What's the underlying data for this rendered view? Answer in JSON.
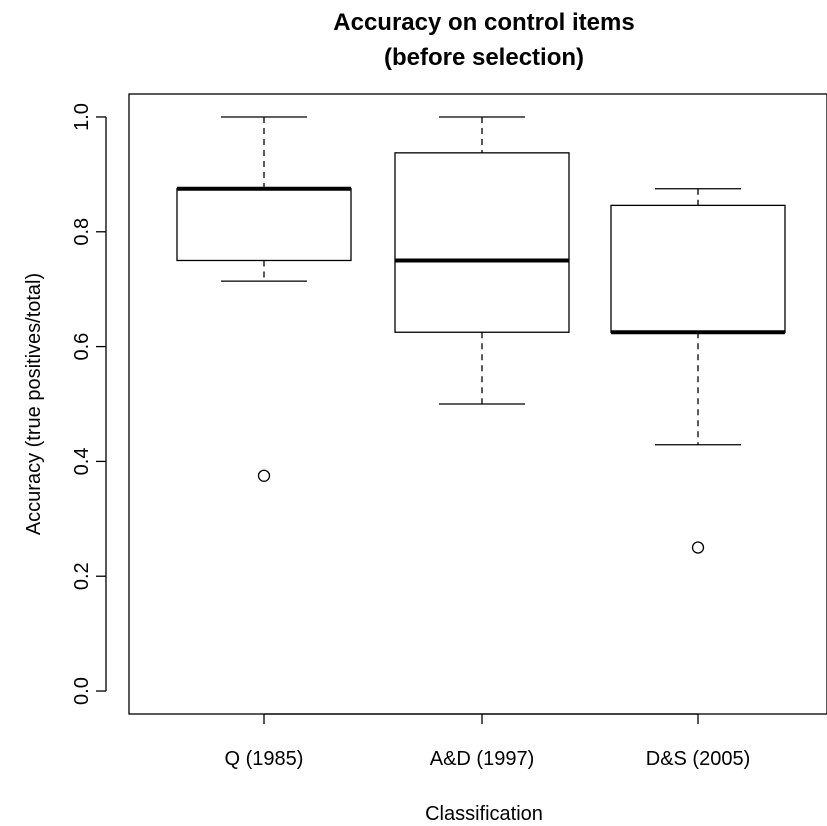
{
  "chart_data": {
    "type": "boxplot",
    "title": "Accuracy on control items",
    "subtitle": "(before selection)",
    "xlabel": "Classification",
    "ylabel": "Accuracy (true positives/total)",
    "ylim": [
      -0.04,
      1.04
    ],
    "yticks": [
      0.0,
      0.2,
      0.4,
      0.6,
      0.8,
      1.0
    ],
    "ytick_labels": [
      "0.0",
      "0.2",
      "0.4",
      "0.6",
      "0.8",
      "1.0"
    ],
    "grid": false,
    "categories": [
      "Q (1985)",
      "A&D (1997)",
      "D&S (2005)"
    ],
    "boxes": [
      {
        "category": "Q (1985)",
        "whisker_low": 0.714,
        "q1": 0.75,
        "median": 0.875,
        "q3": 0.875,
        "whisker_high": 1.0,
        "outliers": [
          0.375
        ]
      },
      {
        "category": "A&D (1997)",
        "whisker_low": 0.5,
        "q1": 0.625,
        "median": 0.75,
        "q3": 0.9375,
        "whisker_high": 1.0,
        "outliers": []
      },
      {
        "category": "D&S (2005)",
        "whisker_low": 0.429,
        "q1": 0.625,
        "median": 0.625,
        "q3": 0.846,
        "whisker_high": 0.875,
        "outliers": [
          0.25
        ]
      }
    ]
  }
}
